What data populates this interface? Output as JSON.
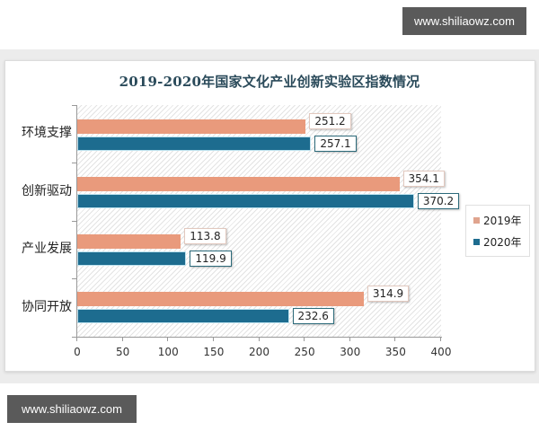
{
  "watermarks": {
    "top": "www.shiliaowz.com",
    "bottom": "www.shiliaowz.com"
  },
  "chart_data": {
    "type": "bar",
    "orientation": "horizontal",
    "title": "2019-2020年国家文化产业创新实验区指数情况",
    "categories": [
      "环境支撑",
      "创新驱动",
      "产业发展",
      "协同开放"
    ],
    "series": [
      {
        "name": "2019年",
        "color": "#e99a7c",
        "values": [
          251.2,
          354.1,
          113.8,
          314.9
        ]
      },
      {
        "name": "2020年",
        "color": "#1d6c8f",
        "values": [
          257.1,
          370.2,
          119.9,
          232.6
        ]
      }
    ],
    "value_labels": {
      "2019": [
        "251.2",
        "354.1",
        "113.8",
        "314.9"
      ],
      "2020": [
        "257.1",
        "370.2",
        "119.9",
        "232.6"
      ]
    },
    "xlabel": "",
    "ylabel": "",
    "xlim": [
      0,
      400
    ],
    "x_ticks": [
      "0",
      "50",
      "100",
      "150",
      "200",
      "250",
      "300",
      "350",
      "400"
    ],
    "grid": false,
    "background_pattern": "diagonal-hatch",
    "legend_position": "right"
  },
  "legend": {
    "items": [
      "2019年",
      "2020年"
    ]
  }
}
